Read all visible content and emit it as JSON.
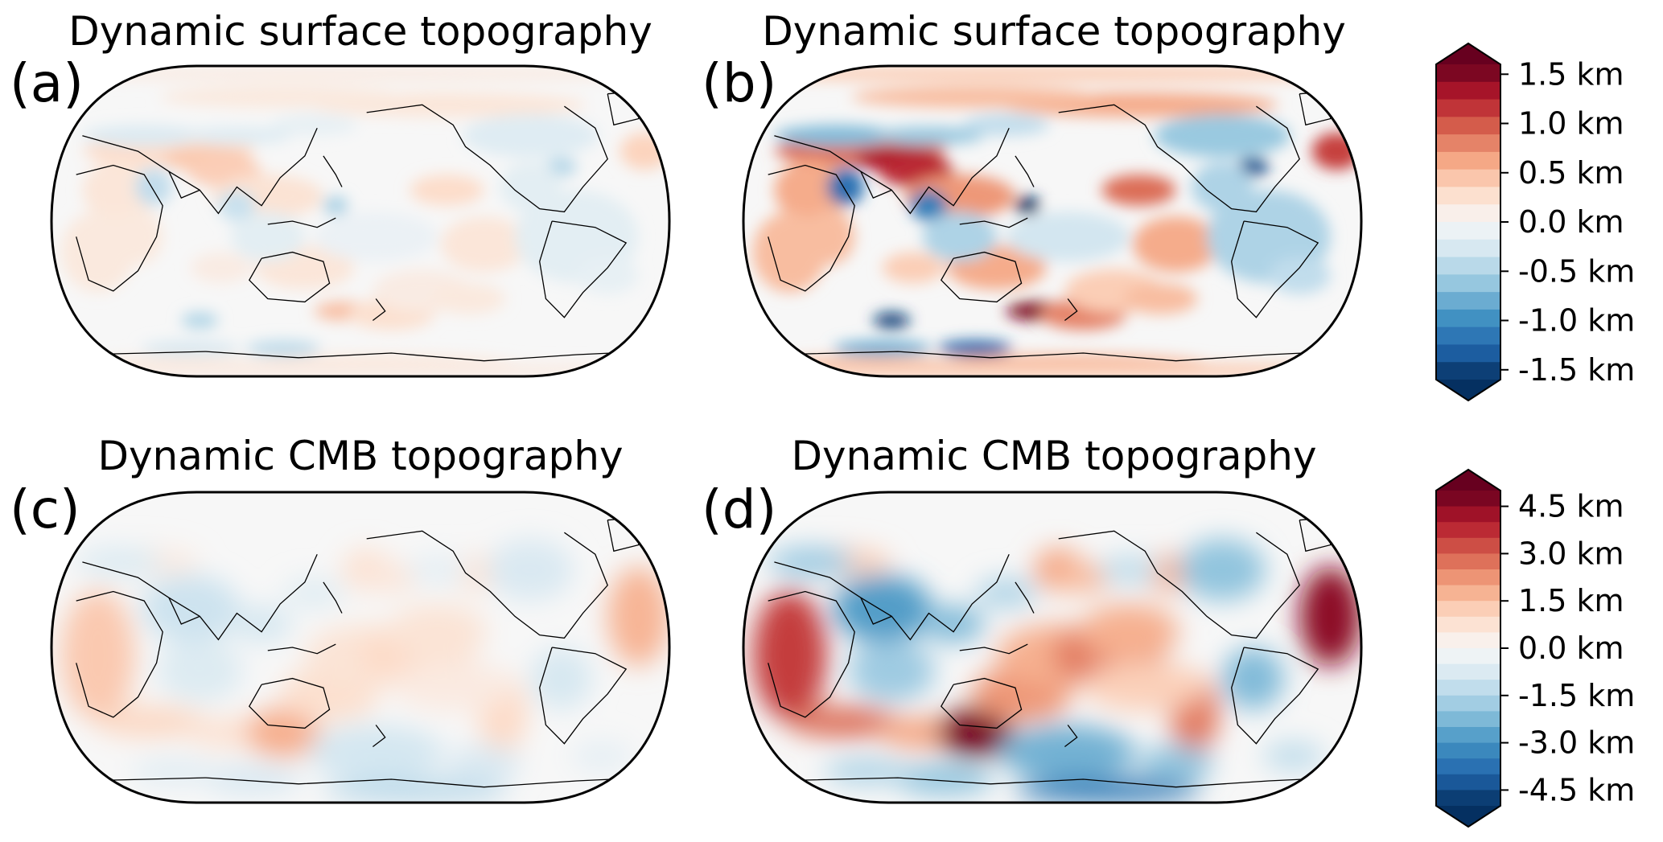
{
  "panels": [
    {
      "title": "Dynamic surface topography",
      "label": "(a)",
      "scale": "surface",
      "intensity": 0.33
    },
    {
      "title": "Dynamic surface topography",
      "label": "(b)",
      "scale": "surface",
      "intensity": 1.0
    },
    {
      "title": "Dynamic CMB topography",
      "label": "(c)",
      "scale": "cmb",
      "intensity": 0.38
    },
    {
      "title": "Dynamic CMB topography",
      "label": "(d)",
      "scale": "cmb",
      "intensity": 1.0
    }
  ],
  "colorbars": {
    "surface": {
      "min": -1.6,
      "max": 1.6,
      "extend": "both",
      "ticks": [
        1.5,
        1.0,
        0.5,
        0.0,
        -0.5,
        -1.0,
        -1.5
      ],
      "tick_labels": [
        "1.5 km",
        "1.0 km",
        "0.5 km",
        "0.0 km",
        "-0.5 km",
        "-1.0 km",
        "-1.5 km"
      ]
    },
    "cmb": {
      "min": -5.0,
      "max": 5.0,
      "extend": "both",
      "ticks": [
        4.5,
        3.0,
        1.5,
        0.0,
        -1.5,
        -3.0,
        -4.5
      ],
      "tick_labels": [
        "4.5 km",
        "3.0 km",
        "1.5 km",
        "0.0 km",
        "-1.5 km",
        "-3.0 km",
        "-4.5 km"
      ]
    }
  },
  "colormap": {
    "name": "RdBu_r",
    "colors": [
      "#053061",
      "#2166ac",
      "#4393c3",
      "#92c5de",
      "#d1e5f0",
      "#f7f7f7",
      "#fddbc7",
      "#f4a582",
      "#d6604d",
      "#b2182b",
      "#67001f"
    ]
  },
  "projection": "Robinson, Pacific-centred"
}
